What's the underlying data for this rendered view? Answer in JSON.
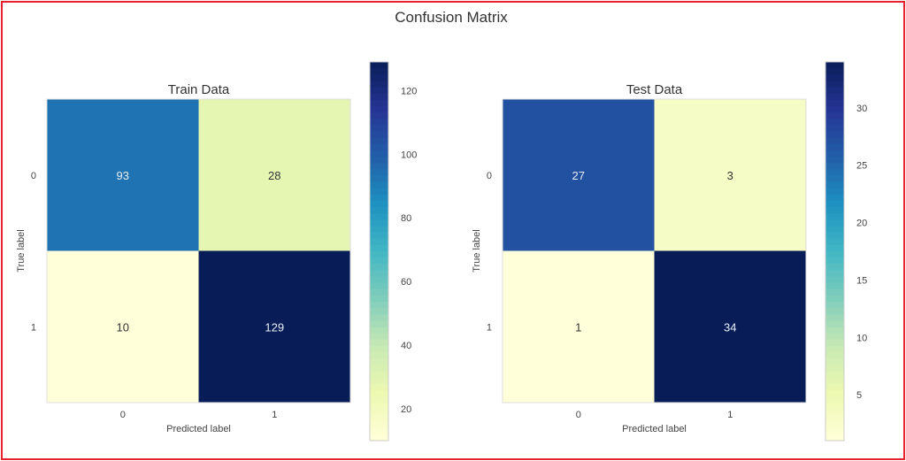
{
  "title": "Confusion Matrix",
  "colormap": "YlGnBu",
  "chart_data": [
    {
      "type": "heatmap",
      "title": "Train Data",
      "xlabel": "Predicted label",
      "ylabel": "True label",
      "x_ticks": [
        "0",
        "1"
      ],
      "y_ticks": [
        "0",
        "1"
      ],
      "values": [
        [
          93,
          28
        ],
        [
          10,
          129
        ]
      ],
      "colorbar": {
        "range": [
          10,
          129
        ],
        "ticks": [
          "20",
          "40",
          "60",
          "80",
          "100",
          "120"
        ]
      }
    },
    {
      "type": "heatmap",
      "title": "Test Data",
      "xlabel": "Predicted label",
      "ylabel": "True label",
      "x_ticks": [
        "0",
        "1"
      ],
      "y_ticks": [
        "0",
        "1"
      ],
      "values": [
        [
          27,
          3
        ],
        [
          1,
          34
        ]
      ],
      "colorbar": {
        "range": [
          1,
          34
        ],
        "ticks": [
          "5",
          "10",
          "15",
          "20",
          "25",
          "30"
        ]
      }
    }
  ]
}
